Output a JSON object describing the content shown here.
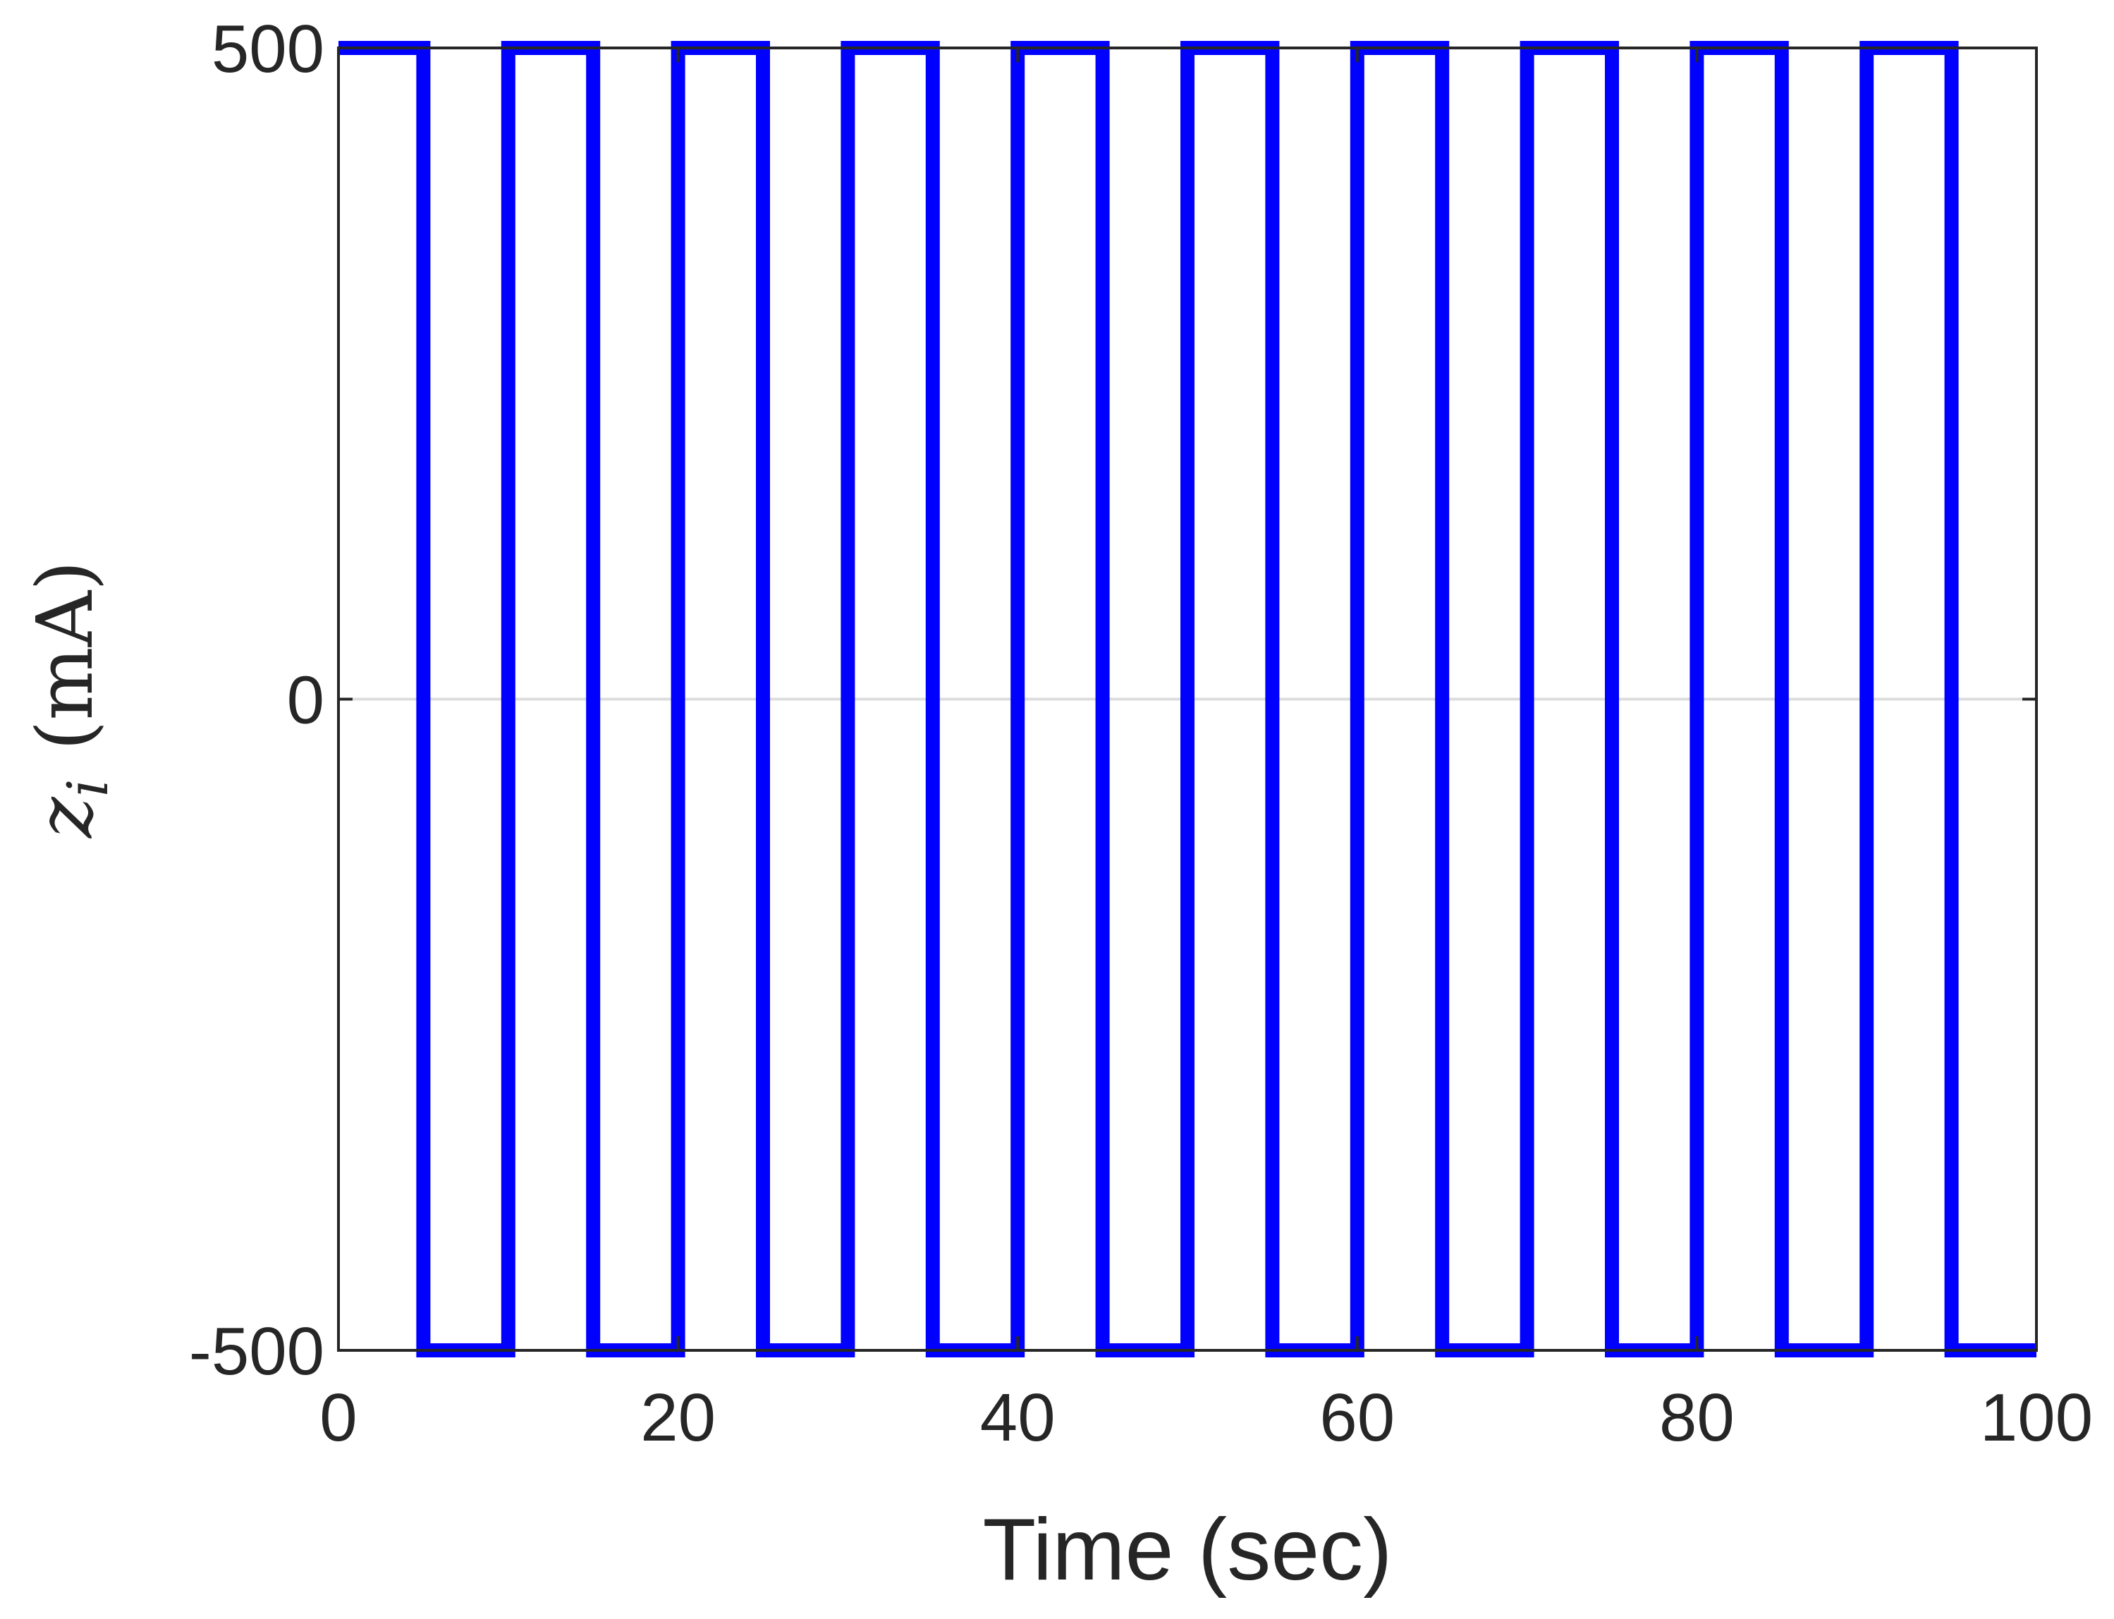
{
  "chart_data": {
    "type": "line",
    "title": "",
    "xlabel": "Time (sec)",
    "ylabel": {
      "symbol": "z",
      "subscript": "i",
      "unit": "(mA)"
    },
    "xlim": [
      0,
      100
    ],
    "ylim": [
      -500,
      500
    ],
    "xticks": [
      "0",
      "20",
      "40",
      "60",
      "80",
      "100"
    ],
    "yticks": [
      "500",
      "0",
      "-500"
    ],
    "grid": "horizontal line at y = 0",
    "legend": "none",
    "series": [
      {
        "color": "#0000ff",
        "step": true,
        "x": [
          0,
          5,
          10,
          15,
          20,
          25,
          30,
          35,
          40,
          45,
          50,
          55,
          60,
          65,
          70,
          75,
          80,
          85,
          90,
          95,
          100
        ],
        "y": [
          500,
          -500,
          500,
          -500,
          500,
          -500,
          500,
          -500,
          500,
          -500,
          500,
          -500,
          500,
          -500,
          500,
          -500,
          500,
          -500,
          500,
          -500,
          -500
        ]
      }
    ]
  }
}
